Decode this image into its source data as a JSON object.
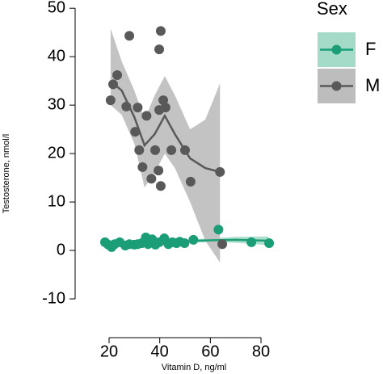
{
  "chart_data": {
    "type": "scatter",
    "x_label": "Vitamin D, ng/ml",
    "y_label": "Testosterone, nmol/l",
    "legend_title": "Sex",
    "xlim": [
      6.6,
      90.2
    ],
    "ylim": [
      -18,
      51.7
    ],
    "xticks": [
      20,
      40,
      60,
      80
    ],
    "yticks": [
      -10,
      0,
      10,
      20,
      30,
      40,
      50
    ],
    "series": [
      {
        "name": "F",
        "color": "#1b9e77",
        "band_color": "#a3dac8",
        "x": [
          18.4,
          19.7,
          21,
          22.2,
          24.2,
          26.4,
          28,
          30,
          31.3,
          32.9,
          34.5,
          35.4,
          37,
          38.3,
          39.8,
          41.8,
          43.4,
          45,
          46.6,
          47.9,
          49.8,
          53.3,
          63.2,
          76.2,
          83.2
        ],
        "y": [
          1.7,
          1.2,
          0.7,
          1.3,
          1.7,
          1,
          1.3,
          1.2,
          1.3,
          1.5,
          2.7,
          1.3,
          2.3,
          1.2,
          1.7,
          2.5,
          1.3,
          1.7,
          1.5,
          1.8,
          1.5,
          2.2,
          4.3,
          1.7,
          1.5
        ],
        "smooth": {
          "x": [
            19,
            30,
            40,
            50,
            60,
            70,
            83
          ],
          "y": [
            1.2,
            1.4,
            1.7,
            1.9,
            2.1,
            2.2,
            2.0
          ],
          "lower": [
            0.8,
            1.1,
            1.4,
            1.6,
            1.7,
            1.6,
            1.1
          ],
          "upper": [
            1.6,
            1.7,
            2.0,
            2.2,
            2.5,
            2.8,
            2.9
          ]
        }
      },
      {
        "name": "M",
        "color": "#595959",
        "band_color": "#bdbdbd",
        "x": [
          20.6,
          21.6,
          23.2,
          28,
          26.8,
          30.3,
          31.3,
          31.9,
          33.2,
          34.8,
          36.7,
          38.2,
          39.5,
          39.8,
          40.4,
          39.8,
          40.4,
          41.4,
          42.3,
          44.6,
          50,
          52.2,
          63.8,
          64.7
        ],
        "y": [
          31,
          34.3,
          36.2,
          44.3,
          29.7,
          24.5,
          29.5,
          20.7,
          17.2,
          27.8,
          14.8,
          20.7,
          16.5,
          41.5,
          45.3,
          29,
          13.3,
          31,
          29.5,
          20.7,
          20.7,
          14.2,
          16.2,
          1.3
        ],
        "smooth": {
          "x": [
            20.6,
            25,
            30,
            34,
            38,
            42,
            46,
            52,
            58,
            63.8
          ],
          "y": [
            35,
            33,
            27.5,
            21.7,
            24,
            27.8,
            24,
            19,
            17,
            16.2
          ],
          "lower": [
            30,
            28,
            22,
            13,
            16,
            20,
            17,
            10,
            2,
            -2.5
          ],
          "upper": [
            45.8,
            39,
            33,
            27,
            32,
            36,
            32,
            25,
            27,
            34.5
          ]
        }
      }
    ]
  }
}
